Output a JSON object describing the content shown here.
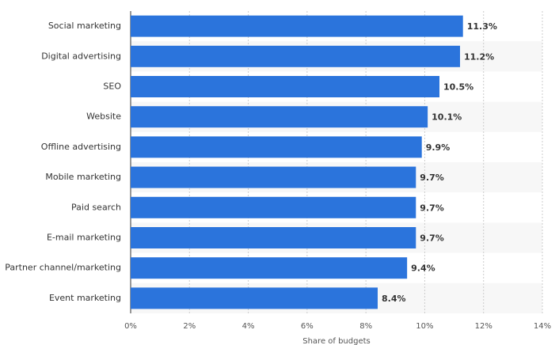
{
  "chart_data": {
    "type": "hbar",
    "categories": [
      "Social marketing",
      "Digital advertising",
      "SEO",
      "Website",
      "Offline advertising",
      "Mobile marketing",
      "Paid search",
      "E-mail marketing",
      "Partner channel/marketing",
      "Event marketing"
    ],
    "values": [
      11.3,
      11.2,
      10.5,
      10.1,
      9.9,
      9.7,
      9.7,
      9.7,
      9.4,
      8.4
    ],
    "value_labels": [
      "11.3%",
      "11.2%",
      "10.5%",
      "10.1%",
      "9.9%",
      "9.7%",
      "9.7%",
      "9.7%",
      "9.4%",
      "8.4%"
    ],
    "color": "#2b74dc",
    "xlim": [
      0,
      14
    ],
    "xticks": [
      {
        "value": 0,
        "label": "0%"
      },
      {
        "value": 2,
        "label": "2%"
      },
      {
        "value": 4,
        "label": "4%"
      },
      {
        "value": 6,
        "label": "6%"
      },
      {
        "value": 8,
        "label": "8%"
      },
      {
        "value": 10,
        "label": "10%"
      },
      {
        "value": 12,
        "label": "12%"
      },
      {
        "value": 14,
        "label": "14%"
      }
    ],
    "xlabel": "Share of budgets",
    "grid": true
  }
}
